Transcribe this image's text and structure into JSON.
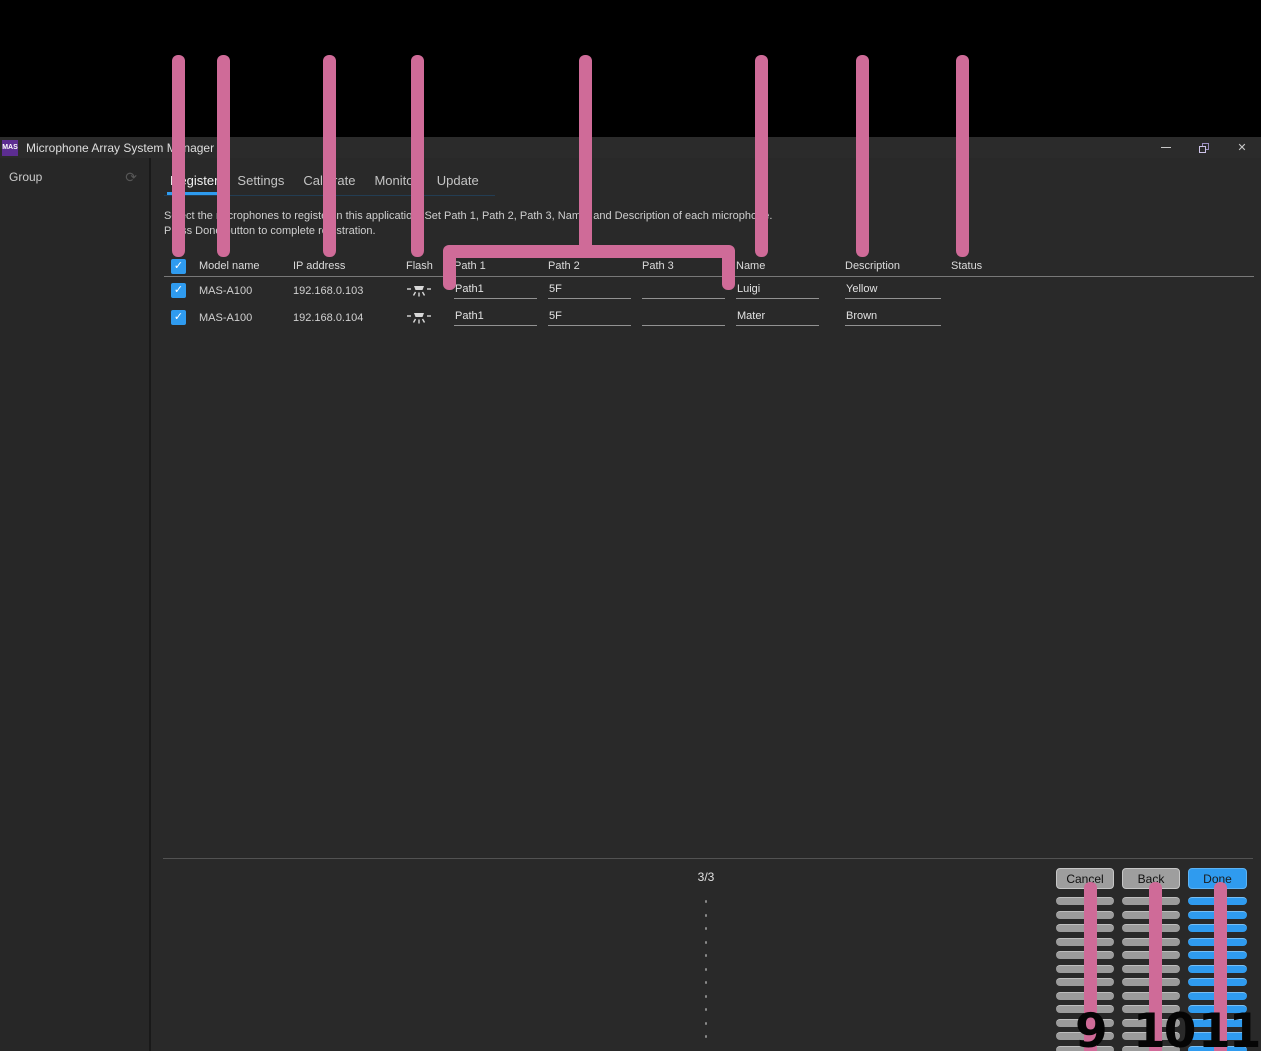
{
  "colors": {
    "accent_blue": "#2f9bef",
    "annotation_pink": "#cf6b98",
    "logo_purple": "#5c2d91"
  },
  "titlebar": {
    "logo_text": "MAS",
    "title": "Microphone Array System Manager"
  },
  "icons": {
    "minimize": "–",
    "restore": "restore-squares",
    "close": "✕",
    "refresh": "⟳",
    "checkmark": "✓",
    "flash": "flash-lamp"
  },
  "sidebar": {
    "header_label": "Group"
  },
  "tabs": [
    {
      "label": "Register",
      "active": true
    },
    {
      "label": "Settings",
      "active": false
    },
    {
      "label": "Calibrate",
      "active": false
    },
    {
      "label": "Monitor",
      "active": false
    },
    {
      "label": "Update",
      "active": false
    }
  ],
  "instructions": {
    "line1": "Select the microphones to register in this application. Set Path 1, Path 2, Path 3, Name, and Description of each microphone.",
    "line2": "Press Done button to complete registration."
  },
  "table": {
    "headers": {
      "model": "Model name",
      "ip": "IP address",
      "flash": "Flash",
      "path1": "Path 1",
      "path2": "Path 2",
      "path3": "Path 3",
      "name": "Name",
      "description": "Description",
      "status": "Status"
    },
    "rows": [
      {
        "checked": true,
        "model": "MAS-A100",
        "ip": "192.168.0.103",
        "path1": "Path1",
        "path2": "5F",
        "path3": "",
        "name": "Luigi",
        "description": "Yellow",
        "status": ""
      },
      {
        "checked": true,
        "model": "MAS-A100",
        "ip": "192.168.0.104",
        "path1": "Path1",
        "path2": "5F",
        "path3": "",
        "name": "Mater",
        "description": "Brown",
        "status": ""
      }
    ]
  },
  "footer": {
    "page_indicator": "3/3",
    "cancel_label": "Cancel",
    "back_label": "Back",
    "done_label": "Done"
  },
  "annotations": {
    "callout_numbers": [
      "9",
      "10",
      "11"
    ]
  }
}
